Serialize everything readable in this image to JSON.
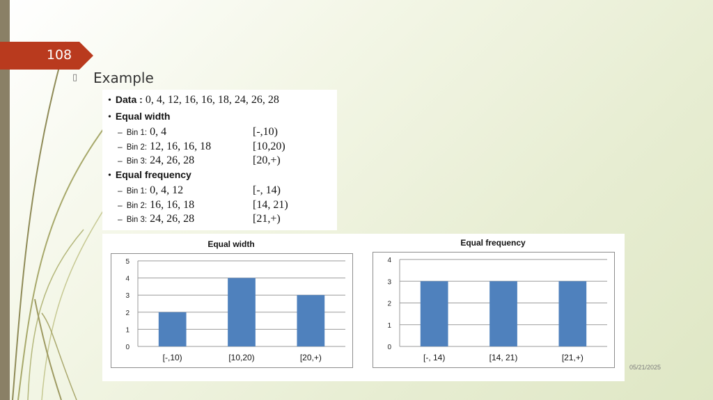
{
  "slide": {
    "number": "108",
    "heading": "Example",
    "date": "05/21/2025",
    "accent_color": "#b93a1e"
  },
  "content": {
    "data_label": "Data :",
    "data_values": "0, 4, 12, 16, 16, 18, 24, 26, 28",
    "equal_width": {
      "title": "Equal width",
      "bins": [
        {
          "name": "Bin 1:",
          "values": "0, 4",
          "range": "[-,10)"
        },
        {
          "name": "Bin 2:",
          "values": "12, 16, 16, 18",
          "range": "[10,20)"
        },
        {
          "name": "Bin 3:",
          "values": "24, 26, 28",
          "range": "[20,+)"
        }
      ]
    },
    "equal_frequency": {
      "title": "Equal frequency",
      "bins": [
        {
          "name": "Bin 1:",
          "values": "0, 4, 12",
          "range": "[-, 14)"
        },
        {
          "name": "Bin 2:",
          "values": "16, 16, 18",
          "range": "[14, 21)"
        },
        {
          "name": "Bin 3:",
          "values": "24, 26, 28",
          "range": "[21,+)"
        }
      ]
    }
  },
  "chart_data": [
    {
      "type": "bar",
      "title": "Equal width",
      "categories": [
        "[-,10)",
        "[10,20)",
        "[20,+)"
      ],
      "values": [
        2,
        4,
        3
      ],
      "ylim": [
        0,
        5
      ],
      "yticks": [
        "0",
        "1",
        "2",
        "3",
        "4",
        "5"
      ],
      "grid": true,
      "bar_color": "#4f81bd"
    },
    {
      "type": "bar",
      "title": "Equal frequency",
      "categories": [
        "[-, 14)",
        "[14, 21)",
        "[21,+)"
      ],
      "values": [
        3,
        3,
        3
      ],
      "ylim": [
        0,
        4
      ],
      "yticks": [
        "0",
        "1",
        "2",
        "3",
        "4"
      ],
      "grid": true,
      "bar_color": "#4f81bd"
    }
  ]
}
